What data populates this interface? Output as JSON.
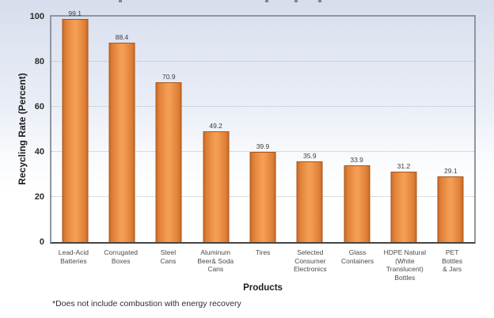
{
  "chart_data": {
    "type": "bar",
    "categories": [
      "Lead-Acid\nBatteries",
      "Corrugated\nBoxes",
      "Steel\nCans",
      "Aluminum\nBeer& Soda\nCans",
      "Tires",
      "Selected\nConsumer\nElectronics",
      "Glass\nContainers",
      "HDPE Natural\n(White\nTranslucent)\nBottles",
      "PET\nBottles\n& Jars"
    ],
    "values": [
      99.1,
      88.4,
      70.9,
      49.2,
      39.9,
      35.9,
      33.9,
      31.2,
      29.1
    ],
    "value_labels": [
      "99.1",
      "88.4",
      "70.9",
      "49.2",
      "39.9",
      "35.9",
      "33.9",
      "31.2",
      "29.1"
    ],
    "xlabel": "Products",
    "ylabel": "Recycling Rate (Percent)",
    "ylim": [
      0,
      100
    ],
    "yticks": [
      0,
      20,
      40,
      60,
      80,
      100
    ],
    "gridlines": [
      20,
      40,
      60,
      80
    ],
    "grid": "dotted",
    "legend": "none",
    "bar_color_center": "#f49d54",
    "bar_color_edge": "#cd6c27",
    "bar_border_color": "#a8551a"
  },
  "footnote": "*Does not include combustion with energy recovery"
}
